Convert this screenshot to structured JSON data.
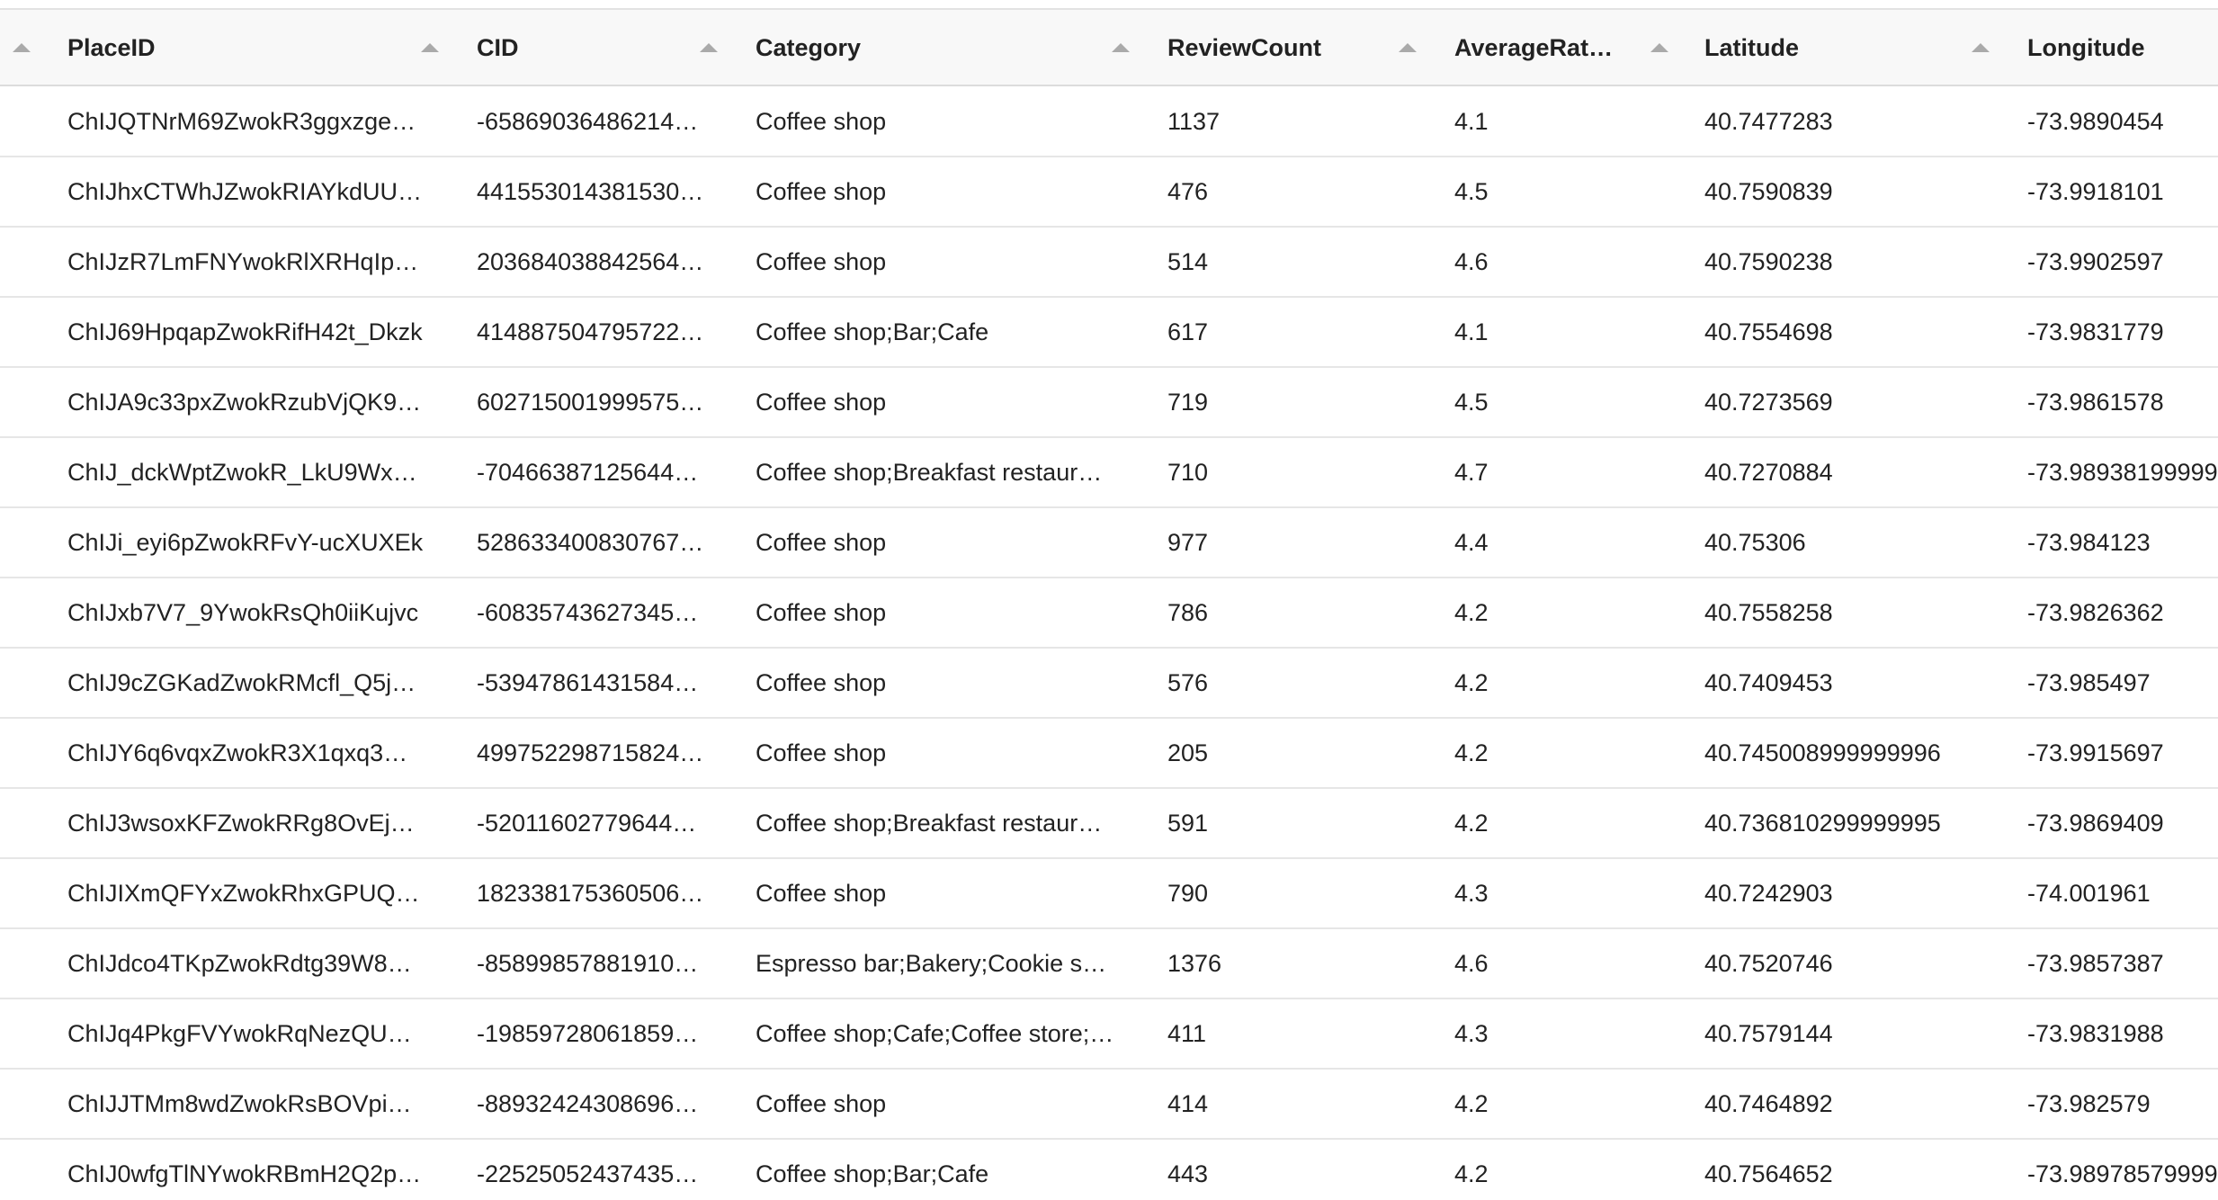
{
  "table": {
    "header": [
      "PlaceID",
      "CID",
      "Category",
      "ReviewCount",
      "AverageRat…",
      "Latitude",
      "Longitude"
    ],
    "rows": [
      [
        "ChIJQTNrM69ZwokR3ggxzge…",
        "-65869036486214…",
        "Coffee shop",
        "1137",
        "4.1",
        "40.7477283",
        "-73.9890454"
      ],
      [
        "ChIJhxCTWhJZwokRIAYkdUU…",
        "441553014381530…",
        "Coffee shop",
        "476",
        "4.5",
        "40.7590839",
        "-73.9918101"
      ],
      [
        "ChIJzR7LmFNYwokRlXRHqIp…",
        "203684038842564…",
        "Coffee shop",
        "514",
        "4.6",
        "40.7590238",
        "-73.9902597"
      ],
      [
        "ChIJ69HpqapZwokRifH42t_Dkzk",
        "414887504795722…",
        "Coffee shop;Bar;Cafe",
        "617",
        "4.1",
        "40.7554698",
        "-73.9831779"
      ],
      [
        "ChIJA9c33pxZwokRzubVjQK9…",
        "602715001999575…",
        "Coffee shop",
        "719",
        "4.5",
        "40.7273569",
        "-73.9861578"
      ],
      [
        "ChIJ_dckWptZwokR_LkU9Wx…",
        "-70466387125644…",
        "Coffee shop;Breakfast restaur…",
        "710",
        "4.7",
        "40.7270884",
        "-73.98938199999"
      ],
      [
        "ChIJi_eyi6pZwokRFvY-ucXUXEk",
        "528633400830767…",
        "Coffee shop",
        "977",
        "4.4",
        "40.75306",
        "-73.984123"
      ],
      [
        "ChIJxb7V7_9YwokRsQh0iiKujvc",
        "-60835743627345…",
        "Coffee shop",
        "786",
        "4.2",
        "40.7558258",
        "-73.9826362"
      ],
      [
        "ChIJ9cZGKadZwokRMcfl_Q5j…",
        "-53947861431584…",
        "Coffee shop",
        "576",
        "4.2",
        "40.7409453",
        "-73.985497"
      ],
      [
        "ChIJY6q6vqxZwokR3X1qxq3…",
        "499752298715824…",
        "Coffee shop",
        "205",
        "4.2",
        "40.745008999999996",
        "-73.9915697"
      ],
      [
        "ChIJ3wsoxKFZwokRRg8OvEj…",
        "-52011602779644…",
        "Coffee shop;Breakfast restaur…",
        "591",
        "4.2",
        "40.736810299999995",
        "-73.9869409"
      ],
      [
        "ChIJIXmQFYxZwokRhxGPUQ…",
        "182338175360506…",
        "Coffee shop",
        "790",
        "4.3",
        "40.7242903",
        "-74.001961"
      ],
      [
        "ChIJdco4TKpZwokRdtg39W8…",
        "-85899857881910…",
        "Espresso bar;Bakery;Cookie s…",
        "1376",
        "4.6",
        "40.7520746",
        "-73.9857387"
      ],
      [
        "ChIJq4PkgFVYwokRqNezQU…",
        "-19859728061859…",
        "Coffee shop;Cafe;Coffee store;…",
        "411",
        "4.3",
        "40.7579144",
        "-73.9831988"
      ],
      [
        "ChIJJTMm8wdZwokRsBOVpi…",
        "-88932424308696…",
        "Coffee shop",
        "414",
        "4.2",
        "40.7464892",
        "-73.982579"
      ],
      [
        "ChIJ0wfgTlNYwokRBmH2Q2p…",
        "-22525052437435…",
        "Coffee shop;Bar;Cafe",
        "443",
        "4.2",
        "40.7564652",
        "-73.98978579999"
      ]
    ]
  }
}
